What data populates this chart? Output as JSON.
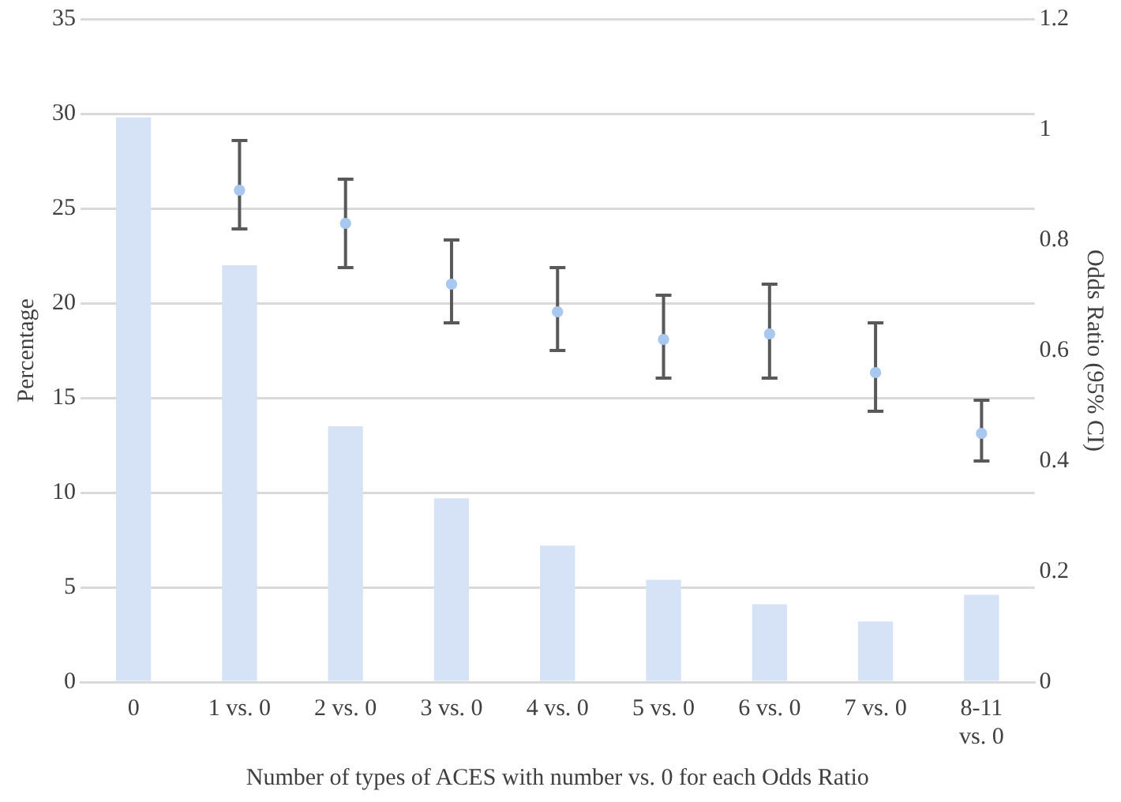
{
  "chart_data": {
    "type": "bar",
    "xlabel": "Number of types of ACES with number vs. 0 for each Odds Ratio",
    "ylabel": "Percentage",
    "y2label": "Odds Ratio (95% CI)",
    "categories": [
      "0",
      "1 vs. 0",
      "2 vs. 0",
      "3 vs. 0",
      "4 vs. 0",
      "5 vs. 0",
      "6 vs. 0",
      "7 vs. 0",
      "8-11 vs. 0"
    ],
    "series": [
      {
        "color": "#d6e3f6",
        "values": [
          29.8,
          22.0,
          13.5,
          9.7,
          7.2,
          5.4,
          4.1,
          3.2,
          4.6
        ]
      },
      {
        "type": "scatter",
        "axis": "y2",
        "color": "#a9c8f0",
        "x": [
          "1 vs. 0",
          "2 vs. 0",
          "3 vs. 0",
          "4 vs. 0",
          "5 vs. 0",
          "6 vs. 0",
          "7 vs. 0",
          "8-11 vs. 0"
        ],
        "values": [
          0.89,
          0.83,
          0.72,
          0.67,
          0.62,
          0.63,
          0.56,
          0.45
        ],
        "errors": [
          [
            0.82,
            0.98
          ],
          [
            0.75,
            0.91
          ],
          [
            0.65,
            0.8
          ],
          [
            0.6,
            0.75
          ],
          [
            0.55,
            0.7
          ],
          [
            0.55,
            0.72
          ],
          [
            0.49,
            0.65
          ],
          [
            0.4,
            0.51
          ]
        ]
      }
    ],
    "ylim": [
      0,
      35
    ],
    "yticks": [
      0,
      5,
      10,
      15,
      20,
      25,
      30,
      35
    ],
    "y2lim": [
      0,
      1.2
    ],
    "y2ticks": [
      0,
      0.2,
      0.4,
      0.6,
      0.8,
      1,
      1.2
    ],
    "grid": "y",
    "legend": false,
    "marker": "circle"
  }
}
